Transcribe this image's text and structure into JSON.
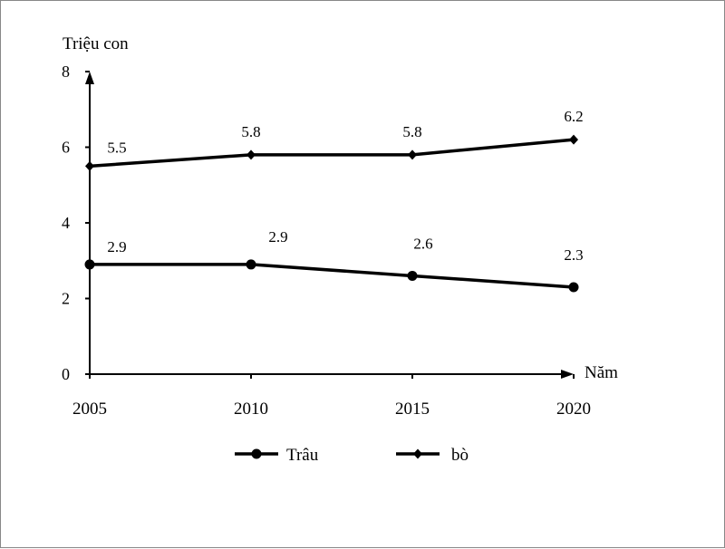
{
  "chart_data": {
    "type": "line",
    "ylabel": "Triệu con",
    "xlabel": "Năm",
    "x": [
      "2005",
      "2010",
      "2015",
      "2020"
    ],
    "ylim": [
      0,
      8
    ],
    "yticks": [
      "0",
      "2",
      "4",
      "6",
      "8"
    ],
    "grid": false,
    "legend_position": "bottom",
    "series": [
      {
        "name": "Trâu",
        "marker": "circle",
        "values": [
          2.9,
          2.9,
          2.6,
          2.3
        ],
        "labels": [
          "2.9",
          "2.9",
          "2.6",
          "2.3"
        ]
      },
      {
        "name": "bò",
        "marker": "diamond",
        "values": [
          5.5,
          5.8,
          5.8,
          6.2
        ],
        "labels": [
          "5.5",
          "5.8",
          "5.8",
          "6.2"
        ]
      }
    ],
    "line_color": "#000000"
  }
}
